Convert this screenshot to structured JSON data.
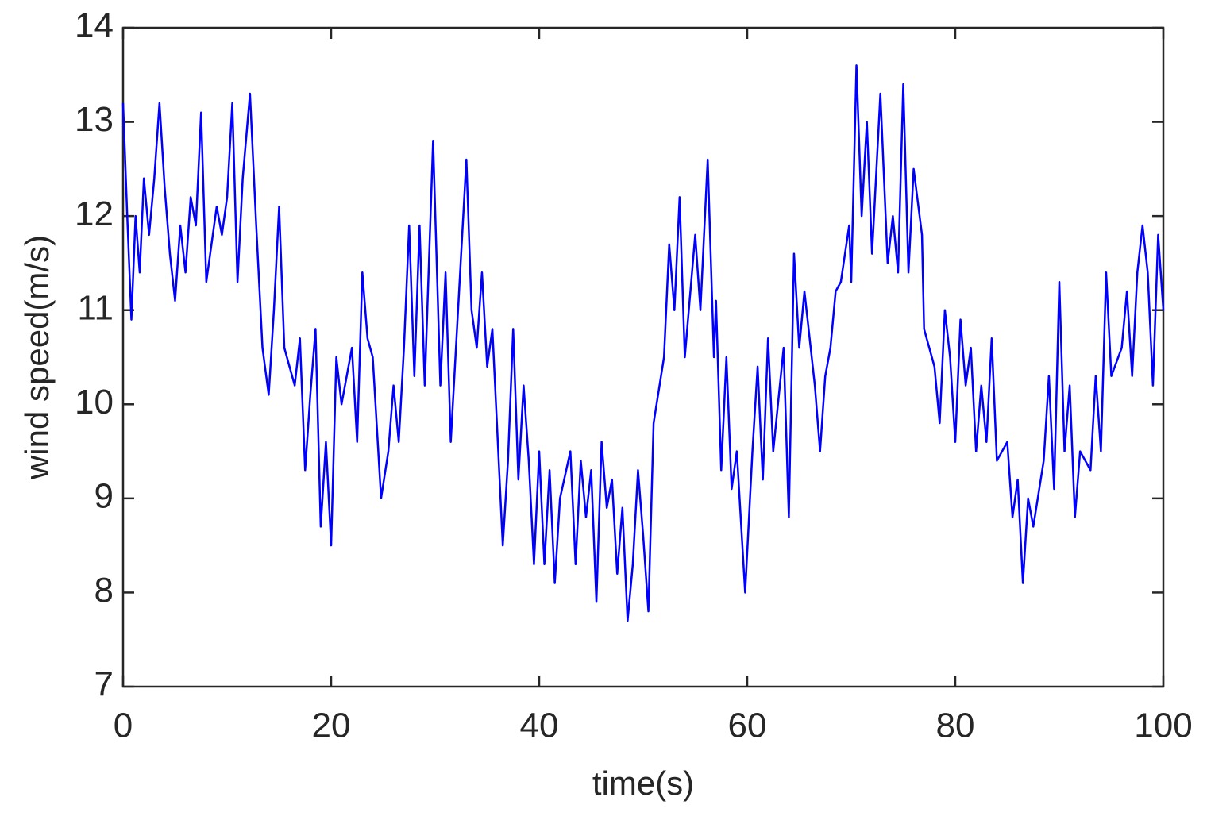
{
  "chart_data": {
    "type": "line",
    "xlabel": "time(s)",
    "ylabel": "wind speed(m/s)",
    "x": [
      0,
      0.4,
      0.8,
      1.2,
      1.6,
      2,
      2.5,
      3,
      3.5,
      4,
      4.5,
      5,
      5.5,
      6,
      6.5,
      7,
      7.5,
      8,
      8.5,
      9,
      9.5,
      10,
      10.5,
      11,
      11.5,
      12.2,
      12.8,
      13.4,
      14,
      14.5,
      15,
      15.5,
      16,
      16.5,
      17,
      17.5,
      18,
      18.5,
      19,
      19.5,
      20,
      20.5,
      21,
      21.5,
      22,
      22.5,
      23,
      23.5,
      24,
      24.8,
      25.5,
      26,
      26.5,
      27,
      27.5,
      28,
      28.5,
      29,
      29.8,
      30.5,
      31,
      31.5,
      32,
      33,
      33.5,
      34,
      34.5,
      35,
      35.5,
      36.5,
      37,
      37.5,
      38,
      38.5,
      39,
      39.5,
      40,
      40.5,
      41,
      41.5,
      42,
      43,
      43.5,
      44,
      44.5,
      45,
      45.5,
      46,
      46.5,
      47,
      47.5,
      48,
      48.5,
      49,
      49.5,
      50,
      50.5,
      51,
      52,
      52.5,
      53,
      53.5,
      54,
      55,
      55.5,
      56.2,
      56.8,
      57,
      57.5,
      58,
      58.5,
      59,
      59.8,
      60.5,
      61,
      61.5,
      62,
      62.5,
      63.5,
      64,
      64.5,
      65,
      65.5,
      66.5,
      67,
      67.5,
      68,
      68.5,
      69,
      69.8,
      70,
      70.5,
      71,
      71.5,
      72,
      72.8,
      73.5,
      74,
      74.5,
      75,
      75.5,
      76,
      76.8,
      77,
      78,
      78.5,
      79,
      79.5,
      80,
      80.5,
      81,
      81.5,
      82,
      82.5,
      83,
      83.5,
      84,
      85,
      85.5,
      86,
      86.5,
      87,
      87.5,
      88.5,
      89,
      89.5,
      90,
      90.5,
      91,
      91.5,
      92,
      93,
      93.5,
      94,
      94.5,
      95,
      96,
      96.5,
      97,
      97.5,
      98,
      98.5,
      99,
      99.5,
      100
    ],
    "series": [
      {
        "name": "wind speed",
        "color": "#0000ff",
        "values": [
          13.2,
          12,
          10.9,
          12,
          11.4,
          12.4,
          11.8,
          12.4,
          13.2,
          12.3,
          11.6,
          11.1,
          11.9,
          11.4,
          12.2,
          11.9,
          13.1,
          11.3,
          11.7,
          12.1,
          11.8,
          12.2,
          13.2,
          11.3,
          12.4,
          13.3,
          11.9,
          10.6,
          10.1,
          11.0,
          12.1,
          10.6,
          10.4,
          10.2,
          10.7,
          9.3,
          10.1,
          10.8,
          8.7,
          9.6,
          8.5,
          10.5,
          10.0,
          10.3,
          10.6,
          9.6,
          11.4,
          10.7,
          10.5,
          9.0,
          9.5,
          10.2,
          9.6,
          10.6,
          11.9,
          10.3,
          11.9,
          10.2,
          12.8,
          10.2,
          11.4,
          9.6,
          10.6,
          12.6,
          11.0,
          10.6,
          11.4,
          10.4,
          10.8,
          8.5,
          9.4,
          10.8,
          9.2,
          10.2,
          9.4,
          8.3,
          9.5,
          8.3,
          9.3,
          8.1,
          9.0,
          9.5,
          8.3,
          9.4,
          8.8,
          9.3,
          7.9,
          9.6,
          8.9,
          9.2,
          8.2,
          8.9,
          7.7,
          8.3,
          9.3,
          8.6,
          7.8,
          9.8,
          10.5,
          11.7,
          11.0,
          12.2,
          10.5,
          11.8,
          11.0,
          12.6,
          10.5,
          11.1,
          9.3,
          10.5,
          9.1,
          9.5,
          8.0,
          9.5,
          10.4,
          9.2,
          10.7,
          9.5,
          10.6,
          8.8,
          11.6,
          10.6,
          11.2,
          10.2,
          9.5,
          10.3,
          10.6,
          11.2,
          11.3,
          11.9,
          11.3,
          13.6,
          12.0,
          13.0,
          11.6,
          13.3,
          11.5,
          12.0,
          11.4,
          13.4,
          11.4,
          12.5,
          11.8,
          10.8,
          10.4,
          9.8,
          11.0,
          10.5,
          9.6,
          10.9,
          10.2,
          10.6,
          9.5,
          10.2,
          9.6,
          10.7,
          9.4,
          9.6,
          8.8,
          9.2,
          8.1,
          9.0,
          8.7,
          9.4,
          10.3,
          9.1,
          11.3,
          9.5,
          10.2,
          8.8,
          9.5,
          9.3,
          10.3,
          9.5,
          11.4,
          10.3,
          10.6,
          11.2,
          10.3,
          11.4,
          11.9,
          11.4,
          10.2,
          11.8,
          11.0
        ]
      }
    ],
    "xlim": [
      0,
      100
    ],
    "xticks": [
      0,
      20,
      40,
      60,
      80,
      100
    ],
    "ylim": [
      7,
      14
    ],
    "yticks": [
      7,
      8,
      9,
      10,
      11,
      12,
      13,
      14
    ]
  }
}
